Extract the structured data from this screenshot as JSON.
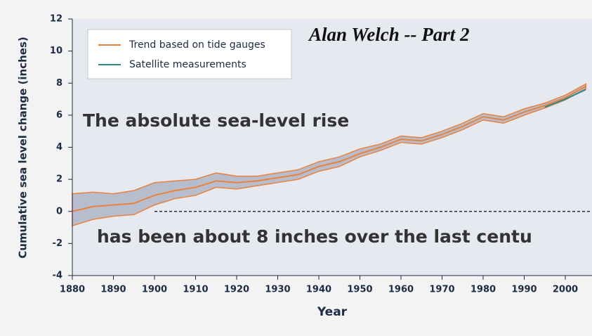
{
  "chart_data": {
    "type": "line",
    "title": "Alan Welch  -- Part 2",
    "annotations": [
      "The absolute sea-level rise",
      "has been about 8 inches over the last centu"
    ],
    "xlabel": "Year",
    "ylabel": "Cumulative sea level change (inches)",
    "x": [
      1880,
      1885,
      1890,
      1895,
      1900,
      1905,
      1910,
      1915,
      1920,
      1925,
      1930,
      1935,
      1940,
      1945,
      1950,
      1955,
      1960,
      1965,
      1970,
      1975,
      1980,
      1985,
      1990,
      1995,
      2000,
      2005
    ],
    "series": [
      {
        "name": "Trend based on tide gauges",
        "color": "#e8823c",
        "values": [
          0,
          0.3,
          0.4,
          0.5,
          1.0,
          1.3,
          1.5,
          1.9,
          1.8,
          1.9,
          2.1,
          2.3,
          2.8,
          3.1,
          3.6,
          4.0,
          4.5,
          4.4,
          4.8,
          5.3,
          5.9,
          5.7,
          6.2,
          6.6,
          7.1,
          7.8
        ],
        "band_lower": [
          -0.9,
          -0.5,
          -0.3,
          -0.2,
          0.4,
          0.8,
          1.0,
          1.5,
          1.4,
          1.6,
          1.8,
          2.0,
          2.5,
          2.8,
          3.4,
          3.8,
          4.3,
          4.2,
          4.6,
          5.1,
          5.7,
          5.5,
          6.0,
          6.45,
          6.95,
          7.65
        ],
        "band_upper": [
          1.1,
          1.2,
          1.1,
          1.3,
          1.8,
          1.9,
          2.0,
          2.4,
          2.2,
          2.2,
          2.4,
          2.6,
          3.1,
          3.4,
          3.9,
          4.2,
          4.7,
          4.6,
          5.0,
          5.5,
          6.1,
          5.9,
          6.4,
          6.75,
          7.25,
          7.95
        ]
      },
      {
        "name": "Satellite measurements",
        "color": "#2a8a8a",
        "values": [
          null,
          null,
          null,
          null,
          null,
          null,
          null,
          null,
          null,
          null,
          null,
          null,
          null,
          null,
          null,
          null,
          null,
          null,
          null,
          null,
          null,
          null,
          null,
          6.5,
          7.0,
          7.6
        ]
      }
    ],
    "reference_line": {
      "value": 0,
      "start": 1900
    },
    "xlim": [
      1880,
      2006.5
    ],
    "xticks": [
      1880,
      1890,
      1900,
      1910,
      1920,
      1930,
      1940,
      1950,
      1960,
      1970,
      1980,
      1990,
      2000
    ],
    "ylim": [
      -4,
      12
    ],
    "yticks": [
      -4,
      -2,
      0,
      2,
      4,
      6,
      8,
      10,
      12
    ]
  }
}
